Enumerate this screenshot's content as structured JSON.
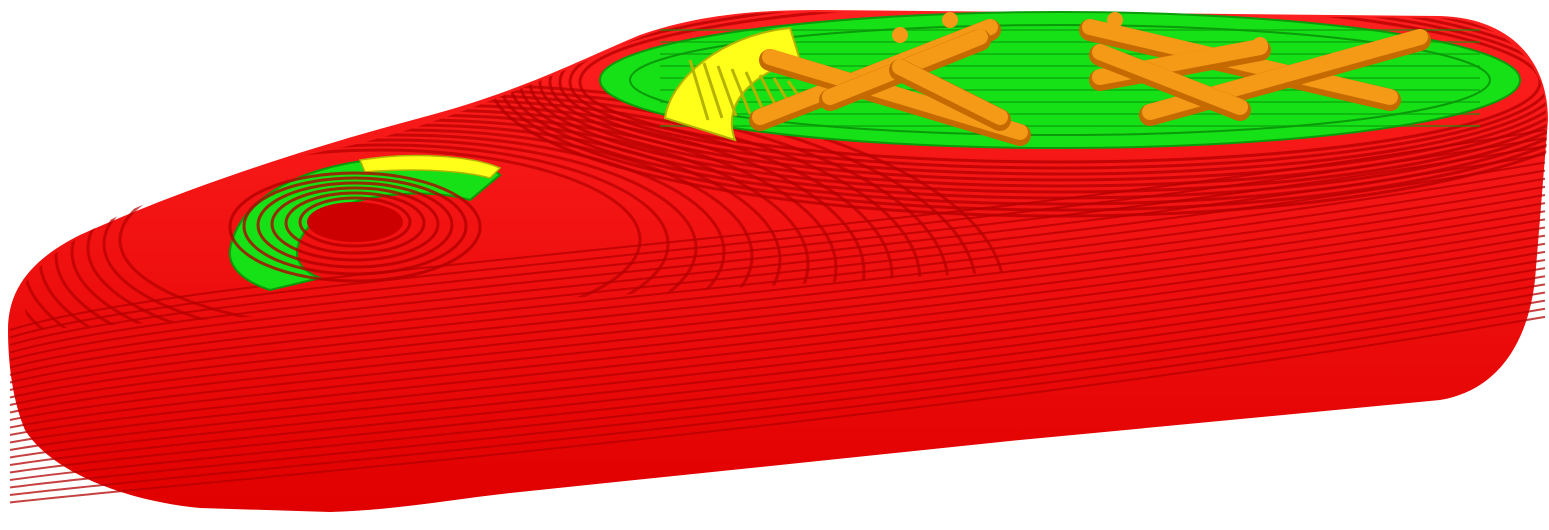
{
  "scene": {
    "type": "3d-print-gcode-preview",
    "background": "#ffffff",
    "layer_count_side": 24,
    "feature_colors": {
      "outer_perimeter": "#ff1a1a",
      "perimeter_shadow": "#b30000",
      "inner_perimeter": "#16e016",
      "top_solid_infill": "#ffff1a",
      "support_infill": "#f59a16",
      "support_infill_shadow": "#c46a00"
    }
  }
}
